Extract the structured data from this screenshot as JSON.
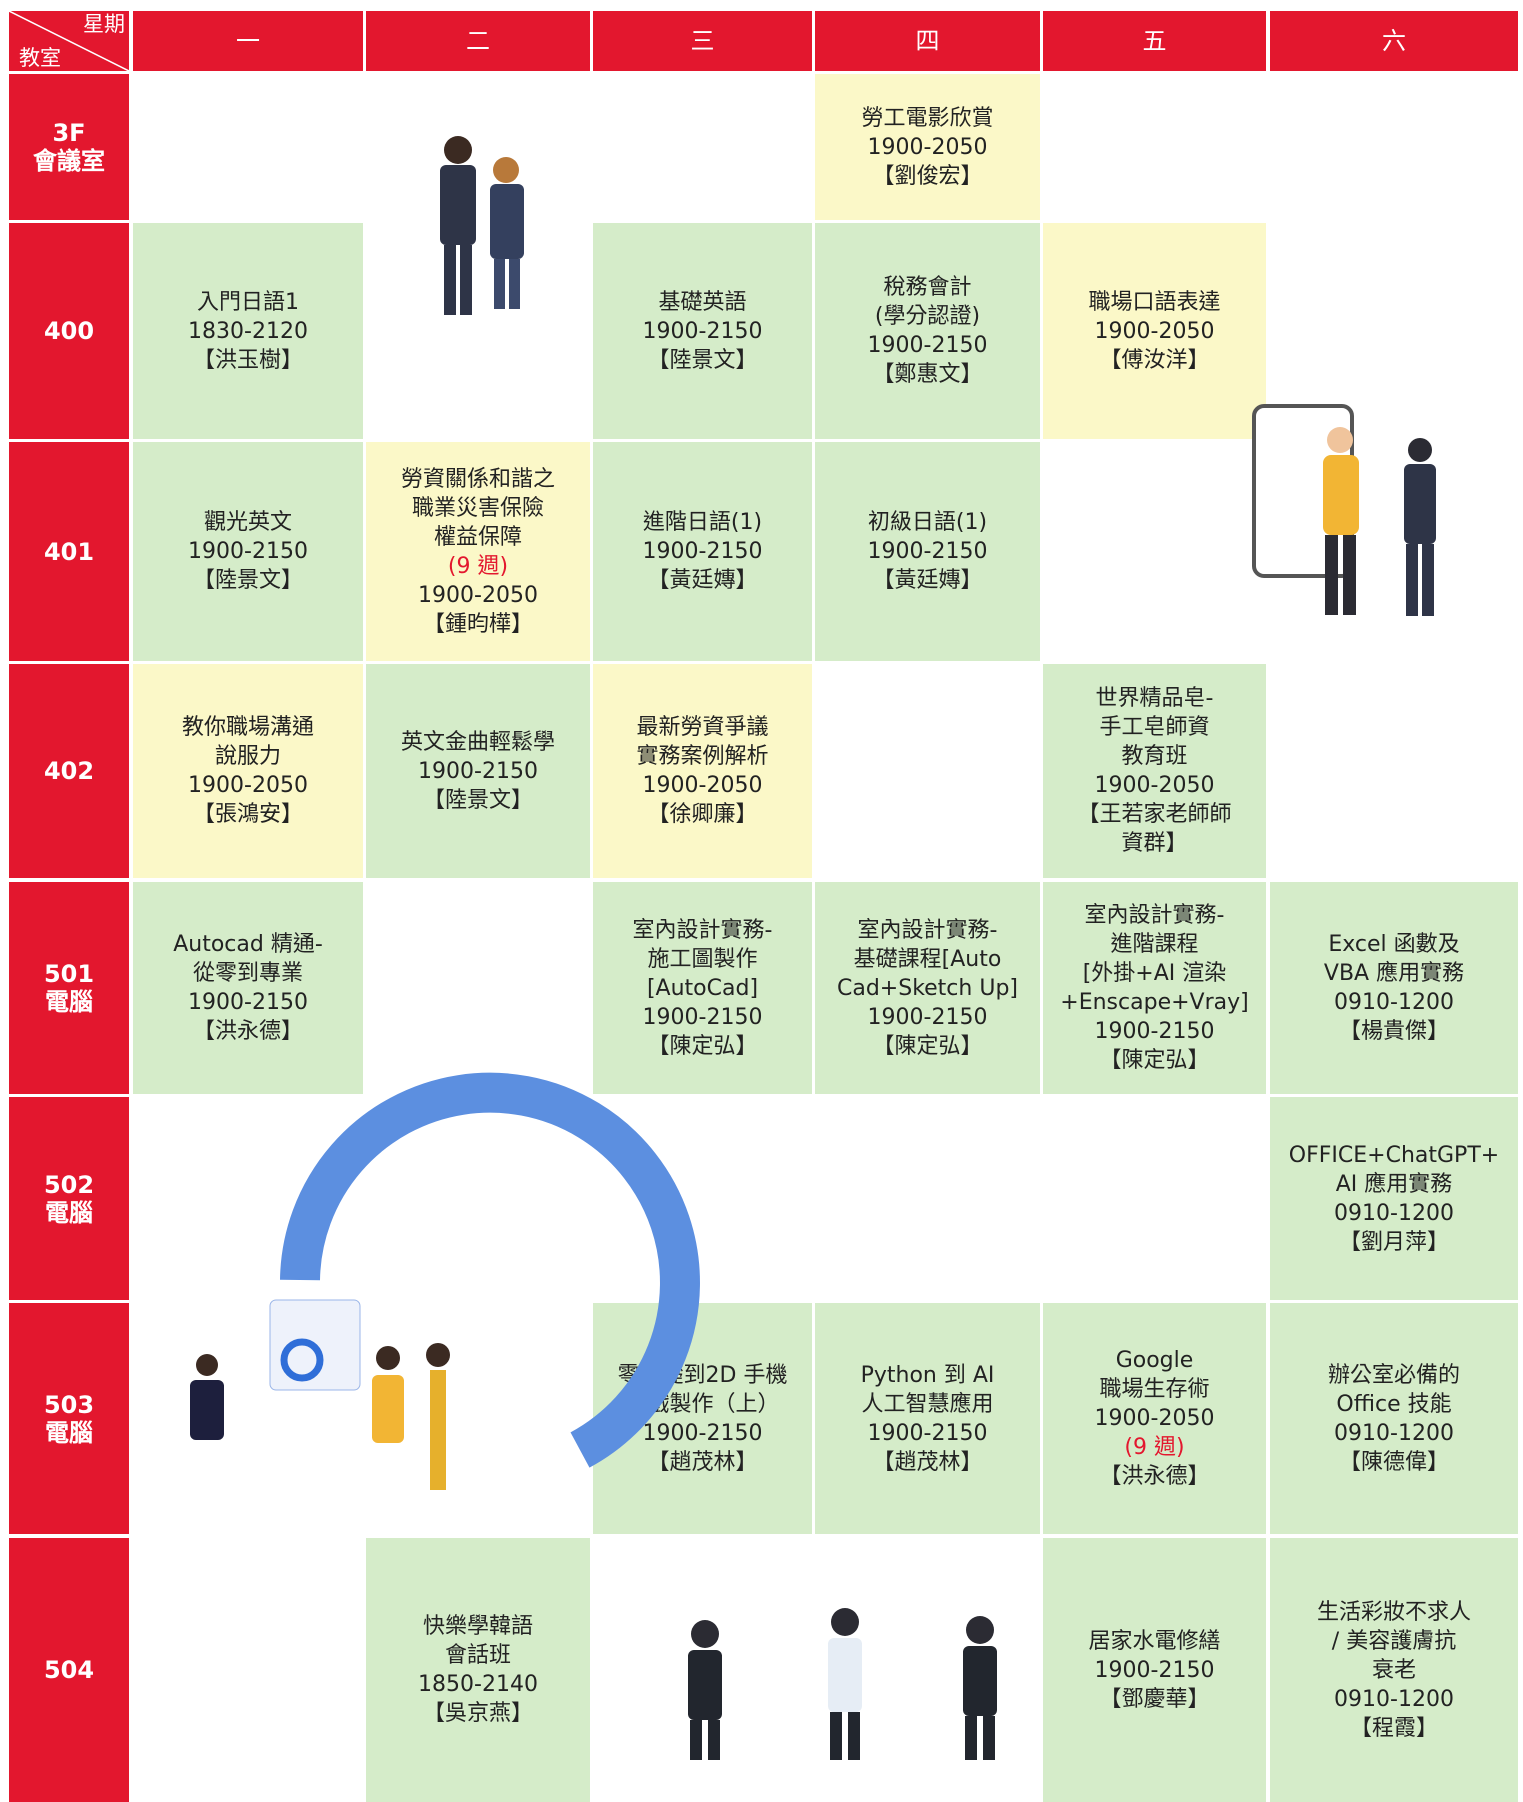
{
  "table": {
    "corner_day": "星期",
    "corner_room": "教室",
    "days": [
      "一",
      "二",
      "三",
      "四",
      "五",
      "六"
    ],
    "rows": [
      {
        "room": [
          "3F",
          "會議室"
        ],
        "cells": [
          null,
          null,
          null,
          {
            "color": "yellow",
            "lines": [
              "勞工電影欣賞",
              "1900-2050",
              "【劉俊宏】"
            ]
          },
          null,
          null
        ]
      },
      {
        "room": [
          "400"
        ],
        "cells": [
          {
            "color": "green",
            "lines": [
              "入門日語1",
              "1830-2120",
              "【洪玉樹】"
            ]
          },
          null,
          {
            "color": "green",
            "lines": [
              "基礎英語",
              "1900-2150",
              "【陸景文】"
            ]
          },
          {
            "color": "green",
            "lines": [
              "稅務會計",
              "(學分認證)",
              "1900-2150",
              "【鄭惠文】"
            ]
          },
          {
            "color": "yellow",
            "lines": [
              "職場口語表達",
              "1900-2050",
              "【傅汝洋】"
            ]
          },
          null
        ]
      },
      {
        "room": [
          "401"
        ],
        "cells": [
          {
            "color": "green",
            "lines": [
              "觀光英文",
              "1900-2150",
              "【陸景文】"
            ]
          },
          {
            "color": "yellow",
            "lines": [
              "勞資關係和諧之",
              "職業災害保險",
              "權益保障",
              {
                "text": "(9 週)",
                "color": "red"
              },
              "1900-2050",
              "【鍾昀樺】"
            ]
          },
          {
            "color": "green",
            "lines": [
              "進階日語(1)",
              "1900-2150",
              "【黃廷嫥】"
            ]
          },
          {
            "color": "green",
            "lines": [
              "初級日語(1)",
              "1900-2150",
              "【黃廷嫥】"
            ]
          },
          null,
          null
        ]
      },
      {
        "room": [
          "402"
        ],
        "cells": [
          {
            "color": "yellow",
            "lines": [
              "教你職場溝通",
              "說服力",
              "1900-2050",
              "【張鴻安】"
            ]
          },
          {
            "color": "green",
            "lines": [
              "英文金曲輕鬆學",
              "1900-2150",
              "【陸景文】"
            ]
          },
          {
            "color": "yellow",
            "lines": [
              "最新勞資爭議",
              "實務案例解析",
              "1900-2050",
              "【徐卿廉】"
            ]
          },
          null,
          {
            "color": "green",
            "lines": [
              "世界精品皂-",
              "手工皂師資",
              "教育班",
              "1900-2050",
              "【王若家老師師",
              "資群】"
            ]
          },
          null
        ]
      },
      {
        "room": [
          "501",
          "電腦"
        ],
        "cells": [
          {
            "color": "green",
            "lines": [
              "Autocad 精通-",
              "從零到專業",
              "1900-2150",
              "【洪永德】"
            ]
          },
          null,
          {
            "color": "green",
            "lines": [
              "室內設計實務-",
              "施工圖製作",
              "[AutoCad]",
              "1900-2150",
              "【陳定弘】"
            ]
          },
          {
            "color": "green",
            "lines": [
              "室內設計實務-",
              "基礎課程[Auto",
              "Cad+Sketch Up]",
              "1900-2150",
              "【陳定弘】"
            ]
          },
          {
            "color": "green",
            "lines": [
              "室內設計實務-",
              "進階課程",
              "[外掛+AI 渲染",
              "+Enscape+Vray]",
              "1900-2150",
              "【陳定弘】"
            ]
          },
          {
            "color": "green",
            "lines": [
              "Excel 函數及",
              "VBA 應用實務",
              "0910-1200",
              "【楊貴傑】"
            ]
          }
        ]
      },
      {
        "room": [
          "502",
          "電腦"
        ],
        "cells": [
          null,
          null,
          null,
          null,
          null,
          {
            "color": "green",
            "lines": [
              "OFFICE+ChatGPT+",
              "AI 應用實務",
              "0910-1200",
              "【劉月萍】"
            ]
          }
        ]
      },
      {
        "room": [
          "503",
          "電腦"
        ],
        "cells": [
          null,
          null,
          {
            "color": "green",
            "lines": [
              "零基礎到2D 手機",
              "遊戲製作（上）",
              "1900-2150",
              "【趙茂林】"
            ]
          },
          {
            "color": "green",
            "lines": [
              "Python 到 AI",
              "人工智慧應用",
              "1900-2150",
              "【趙茂林】"
            ]
          },
          {
            "color": "green",
            "lines": [
              "Google",
              "職場生存術",
              "1900-2050",
              {
                "text": "(9 週)",
                "color": "red"
              },
              "【洪永德】"
            ]
          },
          {
            "color": "green",
            "lines": [
              "辦公室必備的",
              "Office 技能",
              "0910-1200",
              "【陳德偉】"
            ]
          }
        ]
      },
      {
        "room": [
          "504"
        ],
        "cells": [
          null,
          {
            "color": "green",
            "lines": [
              "快樂學韓語",
              "會話班",
              "1850-2140",
              "【吳京燕】"
            ]
          },
          null,
          null,
          {
            "color": "green",
            "lines": [
              "居家水電修繕",
              "1900-2150",
              "【鄧慶華】"
            ]
          },
          {
            "color": "green",
            "lines": [
              "生活彩妝不求人",
              "/ 美容護膚抗",
              "衰老",
              "0910-1200",
              "【程霞】"
            ]
          }
        ]
      }
    ]
  }
}
